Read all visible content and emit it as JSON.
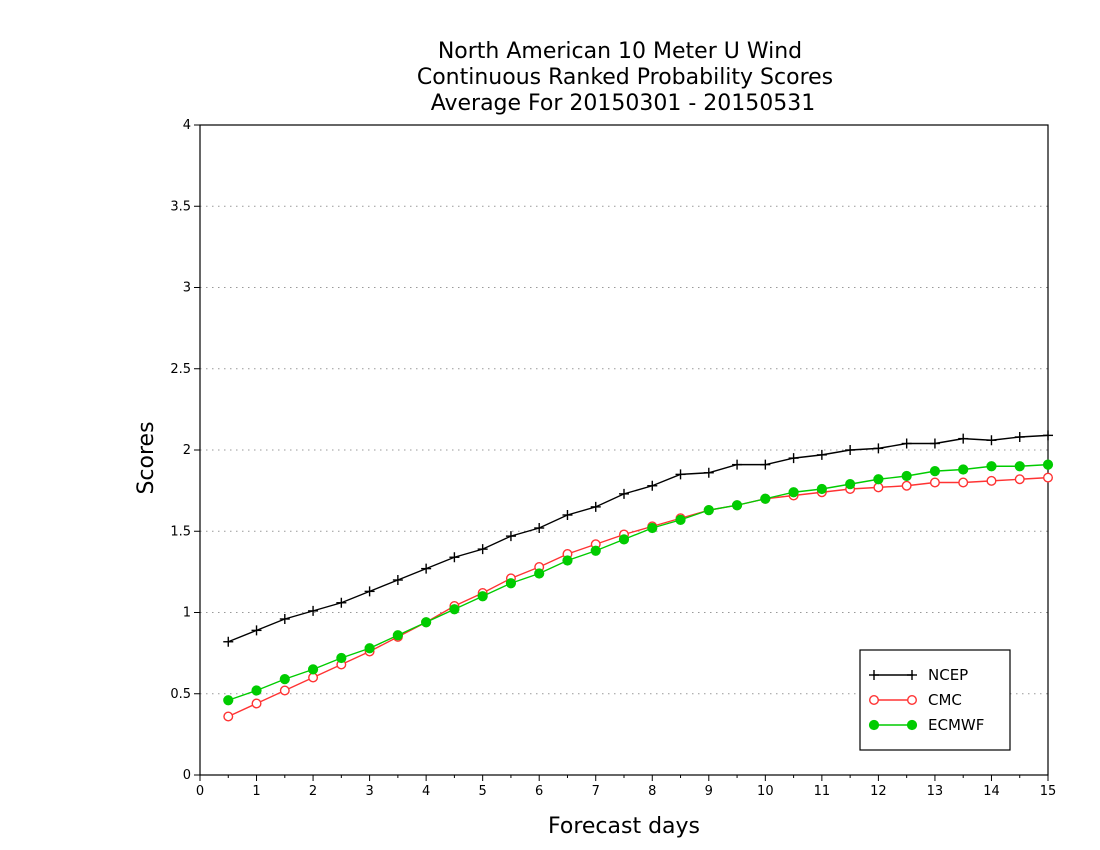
{
  "chart_data": {
    "type": "line",
    "title": [
      "North American 10 Meter U Wind",
      "Continuous Ranked Probability Scores",
      "Average For 20150301 - 20150531"
    ],
    "xlabel": "Forecast days",
    "ylabel": "Scores",
    "xlim": [
      0,
      15
    ],
    "ylim": [
      0,
      4
    ],
    "xticks": [
      "0",
      "1",
      "2",
      "3",
      "4",
      "5",
      "6",
      "7",
      "8",
      "9",
      "10",
      "11",
      "12",
      "13",
      "14",
      "15"
    ],
    "yticks": [
      "0",
      "0.5",
      "1",
      "1.5",
      "2",
      "2.5",
      "3",
      "3.5",
      "4"
    ],
    "grid": "horizontal dotted",
    "legend_position": "bottom-right",
    "x": [
      0.5,
      1,
      1.5,
      2,
      2.5,
      3,
      3.5,
      4,
      4.5,
      5,
      5.5,
      6,
      6.5,
      7,
      7.5,
      8,
      8.5,
      9,
      9.5,
      10,
      10.5,
      11,
      11.5,
      12,
      12.5,
      13,
      13.5,
      14,
      14.5,
      15
    ],
    "series": [
      {
        "name": "NCEP",
        "color": "#000000",
        "marker": "plus",
        "values": [
          0.82,
          0.89,
          0.96,
          1.01,
          1.06,
          1.13,
          1.2,
          1.27,
          1.34,
          1.39,
          1.47,
          1.52,
          1.6,
          1.65,
          1.73,
          1.78,
          1.85,
          1.86,
          1.91,
          1.91,
          1.95,
          1.97,
          2.0,
          2.01,
          2.04,
          2.04,
          2.07,
          2.06,
          2.08,
          2.09
        ]
      },
      {
        "name": "CMC",
        "color": "#ff3333",
        "marker": "open-circle",
        "values": [
          0.36,
          0.44,
          0.52,
          0.6,
          0.68,
          0.76,
          0.85,
          0.94,
          1.04,
          1.12,
          1.21,
          1.28,
          1.36,
          1.42,
          1.48,
          1.53,
          1.58,
          1.63,
          1.66,
          1.7,
          1.72,
          1.74,
          1.76,
          1.77,
          1.78,
          1.8,
          1.8,
          1.81,
          1.82,
          1.83
        ]
      },
      {
        "name": "ECMWF",
        "color": "#00cc00",
        "marker": "filled-circle",
        "values": [
          0.46,
          0.52,
          0.59,
          0.65,
          0.72,
          0.78,
          0.86,
          0.94,
          1.02,
          1.1,
          1.18,
          1.24,
          1.32,
          1.38,
          1.45,
          1.52,
          1.57,
          1.63,
          1.66,
          1.7,
          1.74,
          1.76,
          1.79,
          1.82,
          1.84,
          1.87,
          1.88,
          1.9,
          1.9,
          1.91
        ]
      }
    ]
  }
}
